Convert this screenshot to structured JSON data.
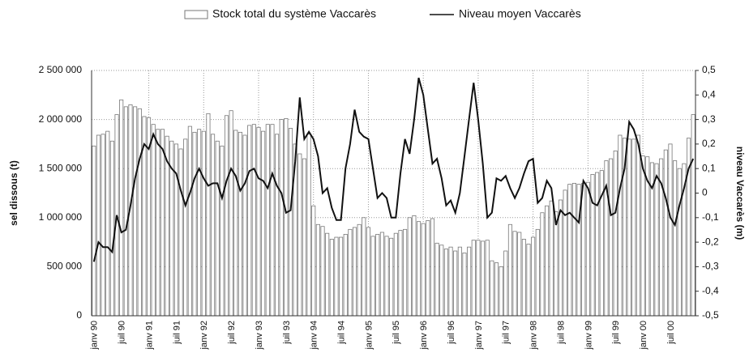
{
  "chart_data": {
    "type": "bar_line",
    "series": [
      {
        "name": "Stock total du système Vaccarès",
        "type": "bar",
        "color": "#ffffff",
        "stroke": "#777777",
        "values": [
          1730000,
          1840000,
          1850000,
          1880000,
          1780000,
          2050000,
          2200000,
          2130000,
          2150000,
          2130000,
          2110000,
          2030000,
          2020000,
          1950000,
          1900000,
          1900000,
          1830000,
          1780000,
          1750000,
          1700000,
          1800000,
          1930000,
          1870000,
          1900000,
          1880000,
          2060000,
          1850000,
          1780000,
          1730000,
          2040000,
          2090000,
          1890000,
          1870000,
          1840000,
          1940000,
          1950000,
          1920000,
          1880000,
          1950000,
          1950000,
          1850000,
          2000000,
          2010000,
          1910000,
          1750000,
          1650000,
          1600000,
          1850000,
          1120000,
          930000,
          910000,
          840000,
          780000,
          800000,
          800000,
          830000,
          880000,
          900000,
          930000,
          1000000,
          900000,
          810000,
          830000,
          850000,
          810000,
          790000,
          840000,
          870000,
          880000,
          1000000,
          1020000,
          960000,
          940000,
          970000,
          990000,
          740000,
          720000,
          680000,
          700000,
          660000,
          700000,
          640000,
          700000,
          770000,
          770000,
          760000,
          770000,
          560000,
          540000,
          500000,
          660000,
          930000,
          860000,
          850000,
          780000,
          730000,
          800000,
          880000,
          1050000,
          1120000,
          1170000,
          1060000,
          1180000,
          1280000,
          1340000,
          1350000,
          1340000,
          1350000,
          1360000,
          1440000,
          1460000,
          1480000,
          1580000,
          1600000,
          1680000,
          1840000,
          1810000,
          1800000,
          1800000,
          1840000,
          1630000,
          1620000,
          1560000,
          1550000,
          1600000,
          1690000,
          1750000,
          1580000,
          1500000,
          1550000,
          1810000,
          2050000
        ]
      },
      {
        "name": "Niveau moyen Vaccarès",
        "type": "line",
        "axis": "y2",
        "color": "#111111",
        "values": [
          -0.28,
          -0.2,
          -0.22,
          -0.22,
          -0.24,
          -0.09,
          -0.16,
          -0.15,
          -0.05,
          0.06,
          0.14,
          0.2,
          0.18,
          0.24,
          0.2,
          0.18,
          0.13,
          0.1,
          0.08,
          0.01,
          -0.05,
          0.0,
          0.06,
          0.1,
          0.06,
          0.03,
          0.04,
          0.04,
          -0.02,
          0.05,
          0.1,
          0.07,
          0.01,
          0.04,
          0.09,
          0.1,
          0.06,
          0.05,
          0.02,
          0.08,
          0.03,
          0.0,
          -0.08,
          -0.07,
          0.13,
          0.39,
          0.22,
          0.25,
          0.22,
          0.15,
          0.0,
          0.02,
          -0.06,
          -0.11,
          -0.11,
          0.1,
          0.2,
          0.34,
          0.25,
          0.23,
          0.22,
          0.1,
          -0.02,
          0.0,
          -0.02,
          -0.1,
          -0.1,
          0.08,
          0.22,
          0.16,
          0.3,
          0.47,
          0.4,
          0.26,
          0.12,
          0.14,
          0.06,
          -0.05,
          -0.03,
          -0.08,
          0.0,
          0.15,
          0.3,
          0.45,
          0.3,
          0.12,
          -0.1,
          -0.08,
          0.06,
          0.05,
          0.07,
          0.02,
          -0.02,
          0.02,
          0.08,
          0.13,
          0.14,
          -0.04,
          -0.02,
          0.05,
          0.02,
          -0.13,
          -0.07,
          -0.09,
          -0.08,
          -0.1,
          -0.12,
          0.05,
          0.02,
          -0.04,
          -0.05,
          -0.01,
          0.03,
          -0.09,
          -0.08,
          0.02,
          0.1,
          0.29,
          0.26,
          0.2,
          0.1,
          0.05,
          0.02,
          0.07,
          0.04,
          -0.02,
          -0.1,
          -0.13,
          -0.05,
          0.02,
          0.1,
          0.14
        ]
      }
    ],
    "categories": [
      "janv 90",
      null,
      null,
      null,
      null,
      null,
      "juil 90",
      null,
      null,
      null,
      null,
      null,
      "janv 91",
      null,
      null,
      null,
      null,
      null,
      "juil 91",
      null,
      null,
      null,
      null,
      null,
      "janv 92",
      null,
      null,
      null,
      null,
      null,
      "juil 92",
      null,
      null,
      null,
      null,
      null,
      "janv 93",
      null,
      null,
      null,
      null,
      null,
      "juil 93",
      null,
      null,
      null,
      null,
      null,
      "janv 94",
      null,
      null,
      null,
      null,
      null,
      "juil 94",
      null,
      null,
      null,
      null,
      null,
      "janv 95",
      null,
      null,
      null,
      null,
      null,
      "juil 95",
      null,
      null,
      null,
      null,
      null,
      "janv 96",
      null,
      null,
      null,
      null,
      null,
      "juil 96",
      null,
      null,
      null,
      null,
      null,
      "janv 97",
      null,
      null,
      null,
      null,
      null,
      "juil 97",
      null,
      null,
      null,
      null,
      null,
      "janv 98",
      null,
      null,
      null,
      null,
      null,
      "juil 98",
      null,
      null,
      null,
      null,
      null,
      "janv 99",
      null,
      null,
      null,
      null,
      null,
      "juil 99",
      null,
      null,
      null,
      null,
      null,
      "janv 00",
      null,
      null,
      null,
      null,
      null,
      "juil 00",
      null,
      null,
      null,
      null,
      null
    ],
    "y_label": "sel dissous (t)",
    "y2_label": "niveau Vaccarès (m)",
    "ylim": [
      0,
      2500000
    ],
    "yticks": [
      0,
      {
        "value": 500000,
        "label": "500 000"
      },
      {
        "value": 1000000,
        "label": "1 000 000"
      },
      {
        "value": 1500000,
        "label": "1 500 000"
      },
      {
        "value": 2000000,
        "label": "2 000 000"
      },
      {
        "value": 2500000,
        "label": "2 500 000"
      }
    ],
    "y2lim": [
      -0.5,
      0.5
    ],
    "y2ticks": [
      {
        "value": -0.5,
        "label": "-0,5"
      },
      {
        "value": -0.4,
        "label": "-0,4"
      },
      {
        "value": -0.3,
        "label": "-0,3"
      },
      {
        "value": -0.2,
        "label": "-0,2"
      },
      {
        "value": -0.1,
        "label": "-0,1"
      },
      0,
      {
        "value": 0.1,
        "label": "0,1"
      },
      {
        "value": 0.2,
        "label": "0,2"
      },
      {
        "value": 0.3,
        "label": "0,3"
      },
      {
        "value": 0.4,
        "label": "0,4"
      },
      {
        "value": 0.5,
        "label": "0,5"
      }
    ],
    "grid": true,
    "legend": "top"
  }
}
